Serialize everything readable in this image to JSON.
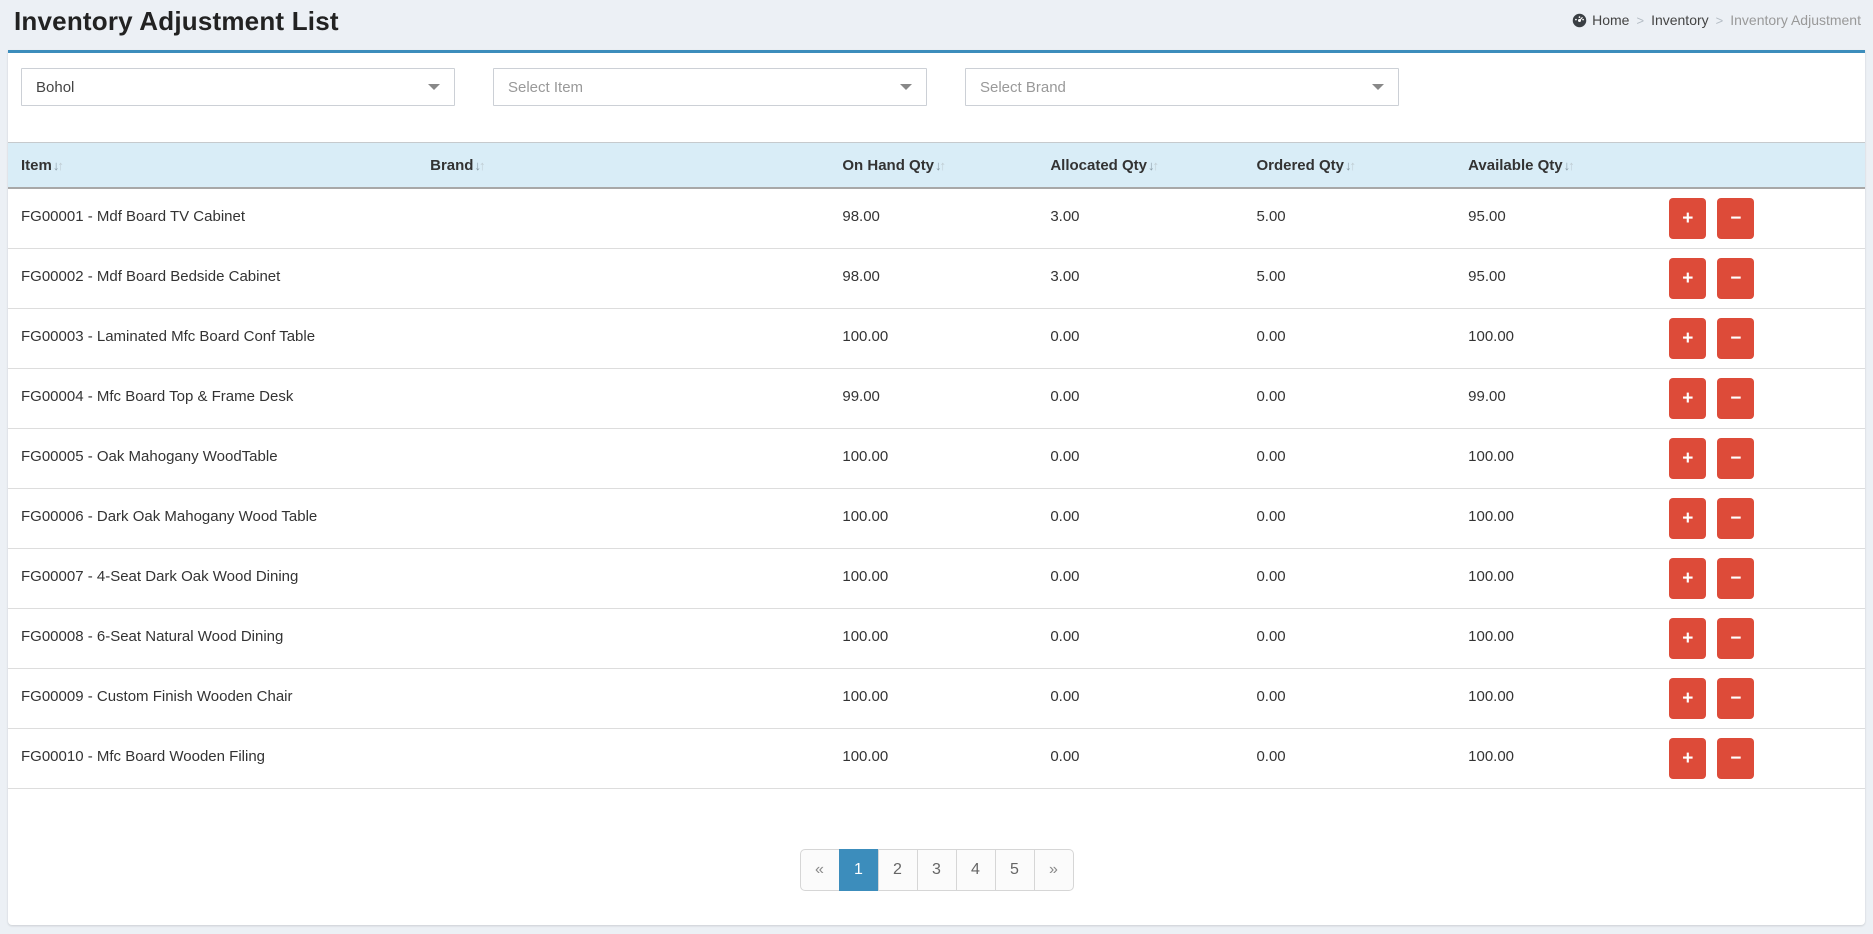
{
  "page": {
    "title": "Inventory Adjustment List"
  },
  "breadcrumb": {
    "home": "Home",
    "section": "Inventory",
    "current": "Inventory Adjustment",
    "separator": ">"
  },
  "filters": {
    "location": {
      "value": "Bohol"
    },
    "item": {
      "placeholder": "Select Item"
    },
    "brand": {
      "placeholder": "Select Brand"
    }
  },
  "table": {
    "headers": {
      "item": "Item",
      "brand": "Brand",
      "on_hand": "On Hand Qty",
      "allocated": "Allocated Qty",
      "ordered": "Ordered Qty",
      "available": "Available Qty"
    },
    "sort_icon": {
      "down": "↓",
      "up": "↑"
    },
    "actions": {
      "plus": "+",
      "minus": "−"
    },
    "rows": [
      {
        "item": "FG00001 - Mdf Board TV Cabinet",
        "brand": "",
        "on_hand": "98.00",
        "allocated": "3.00",
        "ordered": "5.00",
        "available": "95.00"
      },
      {
        "item": "FG00002 - Mdf Board Bedside Cabinet",
        "brand": "",
        "on_hand": "98.00",
        "allocated": "3.00",
        "ordered": "5.00",
        "available": "95.00"
      },
      {
        "item": "FG00003 - Laminated Mfc Board Conf Table",
        "brand": "",
        "on_hand": "100.00",
        "allocated": "0.00",
        "ordered": "0.00",
        "available": "100.00"
      },
      {
        "item": "FG00004 - Mfc Board Top & Frame Desk",
        "brand": "",
        "on_hand": "99.00",
        "allocated": "0.00",
        "ordered": "0.00",
        "available": "99.00"
      },
      {
        "item": "FG00005 - Oak Mahogany WoodTable",
        "brand": "",
        "on_hand": "100.00",
        "allocated": "0.00",
        "ordered": "0.00",
        "available": "100.00"
      },
      {
        "item": "FG00006 - Dark Oak Mahogany Wood Table",
        "brand": "",
        "on_hand": "100.00",
        "allocated": "0.00",
        "ordered": "0.00",
        "available": "100.00"
      },
      {
        "item": "FG00007 - 4-Seat Dark Oak Wood Dining",
        "brand": "",
        "on_hand": "100.00",
        "allocated": "0.00",
        "ordered": "0.00",
        "available": "100.00"
      },
      {
        "item": "FG00008 - 6-Seat Natural Wood Dining",
        "brand": "",
        "on_hand": "100.00",
        "allocated": "0.00",
        "ordered": "0.00",
        "available": "100.00"
      },
      {
        "item": "FG00009 - Custom Finish Wooden Chair",
        "brand": "",
        "on_hand": "100.00",
        "allocated": "0.00",
        "ordered": "0.00",
        "available": "100.00"
      },
      {
        "item": "FG00010 - Mfc Board Wooden Filing",
        "brand": "",
        "on_hand": "100.00",
        "allocated": "0.00",
        "ordered": "0.00",
        "available": "100.00"
      }
    ]
  },
  "pagination": {
    "prev": "«",
    "next": "»",
    "pages": [
      "1",
      "2",
      "3",
      "4",
      "5"
    ],
    "active": "1"
  },
  "colors": {
    "accent": "#3c8dbc",
    "danger": "#dd4b39",
    "table_header_bg": "#d9edf7",
    "page_bg": "#ecf0f5"
  }
}
